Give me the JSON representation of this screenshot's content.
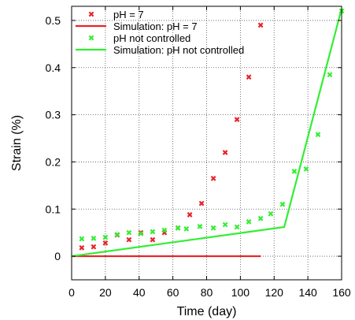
{
  "chart_data": {
    "type": "scatter",
    "title": "",
    "xlabel": "Time (day)",
    "ylabel": "Strain (%)",
    "xlim": [
      0,
      160
    ],
    "ylim": [
      -0.05,
      0.53
    ],
    "xticks": [
      0,
      20,
      40,
      60,
      80,
      100,
      120,
      140,
      160
    ],
    "yticks": [
      0,
      0.1,
      0.2,
      0.3,
      0.4,
      0.5
    ],
    "xtick_labels": [
      "0",
      "20",
      "40",
      "60",
      "80",
      "100",
      "120",
      "140",
      "160"
    ],
    "ytick_labels": [
      "0",
      "0.1",
      "0.2",
      "0.3",
      "0.4",
      "0.5"
    ],
    "grid": true,
    "legend_position": "top-left",
    "series": [
      {
        "name": "pH = 7",
        "kind": "points",
        "color": "#e8232a",
        "x": [
          6,
          13,
          20,
          27,
          34,
          41,
          48,
          55,
          63,
          70,
          77,
          84,
          91,
          98,
          105,
          112
        ],
        "y": [
          0.018,
          0.02,
          0.028,
          0.045,
          0.035,
          0.05,
          0.035,
          0.05,
          0.06,
          0.088,
          0.112,
          0.165,
          0.22,
          0.29,
          0.38,
          0.49
        ]
      },
      {
        "name": "Simulation: pH = 7",
        "kind": "line",
        "color": "#e8232a",
        "x": [
          0,
          112
        ],
        "y": [
          0,
          0
        ]
      },
      {
        "name": "pH not controlled",
        "kind": "points",
        "color": "#33ee33",
        "x": [
          6,
          13,
          20,
          27,
          34,
          41,
          48,
          55,
          63,
          68,
          76,
          84,
          91,
          98,
          105,
          112,
          118,
          125,
          132,
          139,
          146,
          153,
          160
        ],
        "y": [
          0.037,
          0.038,
          0.04,
          0.046,
          0.05,
          0.048,
          0.052,
          0.055,
          0.06,
          0.058,
          0.063,
          0.06,
          0.067,
          0.062,
          0.073,
          0.08,
          0.09,
          0.11,
          0.18,
          0.185,
          0.258,
          0.385,
          0.52
        ]
      },
      {
        "name": "Simulation: pH not controlled",
        "kind": "line",
        "color": "#33ee33",
        "x": [
          0,
          126,
          160
        ],
        "y": [
          0,
          0.062,
          0.525
        ]
      }
    ]
  }
}
